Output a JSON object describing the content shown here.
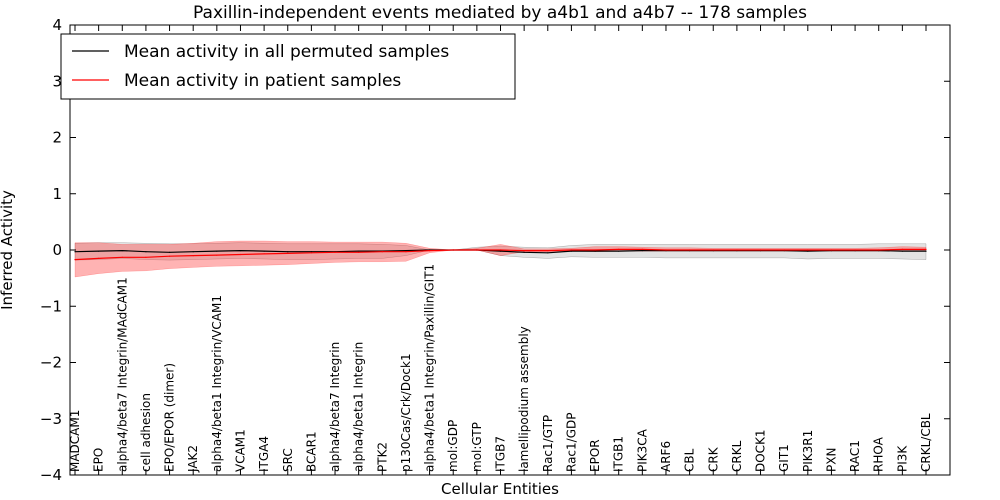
{
  "chart_data": {
    "type": "line",
    "title": "Paxillin-independent events mediated by a4b1 and a4b7 -- 178 samples",
    "xlabel": "Cellular Entities",
    "ylabel": "Inferred Activity",
    "ylim": [
      -4,
      4
    ],
    "yticks": [
      4,
      3,
      2,
      1,
      0,
      -1,
      -2,
      -3,
      -4
    ],
    "ytick_labels": [
      "4",
      "3",
      "2",
      "1",
      "0",
      "−1",
      "−2",
      "−3",
      "−4"
    ],
    "legend_position": "top-left",
    "categories": [
      "MADCAM1",
      "EPO",
      "alpha4/beta7 Integrin/MAdCAM1",
      "cell adhesion",
      "EPO/EPOR (dimer)",
      "JAK2",
      "alpha4/beta1 Integrin/VCAM1",
      "VCAM1",
      "ITGA4",
      "SRC",
      "BCAR1",
      "alpha4/beta7 Integrin",
      "alpha4/beta1 Integrin",
      "PTK2",
      "p130Cas/Crk/Dock1",
      "alpha4/beta1 Integrin/Paxillin/GIT1",
      "mol:GDP",
      "mol:GTP",
      "ITGB7",
      "lamellipodium assembly",
      "Rac1/GTP",
      "Rac1/GDP",
      "EPOR",
      "ITGB1",
      "PIK3CA",
      "ARF6",
      "CBL",
      "CRK",
      "CRKL",
      "DOCK1",
      "GIT1",
      "PIK3R1",
      "PXN",
      "RAC1",
      "RHOA",
      "PI3K",
      "CRKL/CBL"
    ],
    "series": [
      {
        "name": "Mean activity in all permuted samples",
        "color": "#000000",
        "values": [
          -0.03,
          -0.02,
          -0.01,
          -0.03,
          -0.04,
          -0.03,
          -0.02,
          -0.01,
          -0.02,
          -0.03,
          -0.03,
          -0.03,
          -0.02,
          -0.02,
          -0.01,
          0.0,
          0.0,
          0.0,
          -0.02,
          -0.04,
          -0.05,
          -0.02,
          -0.02,
          -0.02,
          -0.01,
          -0.01,
          -0.01,
          -0.01,
          -0.01,
          -0.01,
          -0.01,
          -0.02,
          -0.01,
          -0.01,
          -0.01,
          -0.02,
          -0.02
        ],
        "band_low": [
          -0.18,
          -0.17,
          -0.15,
          -0.17,
          -0.18,
          -0.17,
          -0.16,
          -0.15,
          -0.16,
          -0.17,
          -0.17,
          -0.16,
          -0.15,
          -0.15,
          -0.1,
          0.0,
          0.0,
          0.0,
          -0.1,
          -0.13,
          -0.15,
          -0.12,
          -0.13,
          -0.13,
          -0.13,
          -0.14,
          -0.14,
          -0.14,
          -0.14,
          -0.14,
          -0.14,
          -0.16,
          -0.15,
          -0.15,
          -0.15,
          -0.16,
          -0.17
        ],
        "band_high": [
          0.12,
          0.13,
          0.13,
          0.12,
          0.11,
          0.11,
          0.12,
          0.13,
          0.12,
          0.11,
          0.11,
          0.11,
          0.11,
          0.1,
          0.08,
          0.0,
          0.0,
          0.05,
          0.07,
          0.05,
          0.04,
          0.08,
          0.1,
          0.1,
          0.1,
          0.1,
          0.1,
          0.1,
          0.1,
          0.1,
          0.1,
          0.1,
          0.1,
          0.1,
          0.11,
          0.11,
          0.11
        ]
      },
      {
        "name": "Mean activity in patient samples",
        "color": "#ff0000",
        "values": [
          -0.17,
          -0.15,
          -0.13,
          -0.13,
          -0.11,
          -0.1,
          -0.09,
          -0.08,
          -0.07,
          -0.06,
          -0.05,
          -0.04,
          -0.04,
          -0.03,
          -0.03,
          -0.01,
          0.0,
          0.0,
          0.0,
          -0.01,
          -0.01,
          0.0,
          0.0,
          0.01,
          0.01,
          0.0,
          0.0,
          0.0,
          0.0,
          0.0,
          0.0,
          0.0,
          0.0,
          0.0,
          0.0,
          0.01,
          0.01
        ],
        "band_low": [
          -0.48,
          -0.42,
          -0.38,
          -0.37,
          -0.33,
          -0.31,
          -0.29,
          -0.28,
          -0.27,
          -0.26,
          -0.24,
          -0.22,
          -0.21,
          -0.21,
          -0.2,
          -0.05,
          0.0,
          0.0,
          -0.1,
          -0.03,
          -0.03,
          -0.02,
          -0.03,
          -0.02,
          -0.02,
          -0.02,
          -0.02,
          -0.02,
          -0.02,
          -0.02,
          -0.02,
          -0.02,
          -0.02,
          -0.02,
          -0.02,
          -0.01,
          -0.01
        ],
        "band_high": [
          0.13,
          0.13,
          0.1,
          0.1,
          0.1,
          0.12,
          0.15,
          0.16,
          0.16,
          0.15,
          0.15,
          0.14,
          0.14,
          0.14,
          0.12,
          0.03,
          0.0,
          0.03,
          0.1,
          0.02,
          0.02,
          0.03,
          0.06,
          0.06,
          0.05,
          0.04,
          0.04,
          0.03,
          0.03,
          0.03,
          0.03,
          0.03,
          0.03,
          0.03,
          0.04,
          0.06,
          0.05
        ]
      }
    ]
  }
}
